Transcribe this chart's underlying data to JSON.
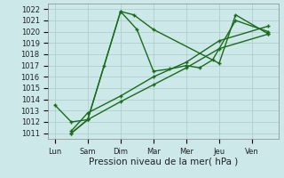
{
  "xlabel": "Pression niveau de la mer( hPa )",
  "background_color": "#cce8e8",
  "grid_color": "#aacccc",
  "line_color": "#1a6b1a",
  "x_labels": [
    "Lun",
    "Sam",
    "Dim",
    "Mar",
    "Mer",
    "Jeu",
    "Ven"
  ],
  "ylim": [
    1010.5,
    1022.5
  ],
  "yticks": [
    1011,
    1012,
    1013,
    1014,
    1015,
    1016,
    1017,
    1018,
    1019,
    1020,
    1021,
    1022
  ],
  "s1_x": [
    0.0,
    0.5,
    1.0,
    2.0,
    2.4,
    3.0,
    5.0,
    5.5,
    6.5
  ],
  "s1_y": [
    1013.5,
    1012.0,
    1012.2,
    1021.8,
    1021.5,
    1020.2,
    1017.2,
    1021.5,
    1019.8
  ],
  "s2_x": [
    0.5,
    1.0,
    1.5,
    2.0,
    2.5,
    3.0,
    3.5,
    4.0,
    4.4,
    4.8,
    5.5,
    6.5
  ],
  "s2_y": [
    1011.0,
    1012.2,
    1017.0,
    1021.8,
    1020.2,
    1016.5,
    1016.7,
    1017.0,
    1016.8,
    1017.5,
    1021.0,
    1020.0
  ],
  "s3_x": [
    0.5,
    1.0,
    2.0,
    3.0,
    4.0,
    5.0,
    6.5
  ],
  "s3_y": [
    1011.0,
    1012.2,
    1013.8,
    1015.3,
    1016.8,
    1018.5,
    1019.8
  ],
  "s4_x": [
    0.5,
    1.0,
    2.0,
    3.0,
    4.0,
    5.0,
    6.5
  ],
  "s4_y": [
    1011.2,
    1012.8,
    1014.3,
    1016.0,
    1017.3,
    1019.2,
    1020.5
  ],
  "x_tick_pos": [
    0.0,
    1.0,
    2.0,
    3.0,
    4.0,
    5.0,
    6.0
  ],
  "title_fontsize": 6.5,
  "tick_fontsize": 6.0,
  "xlabel_fontsize": 7.5
}
